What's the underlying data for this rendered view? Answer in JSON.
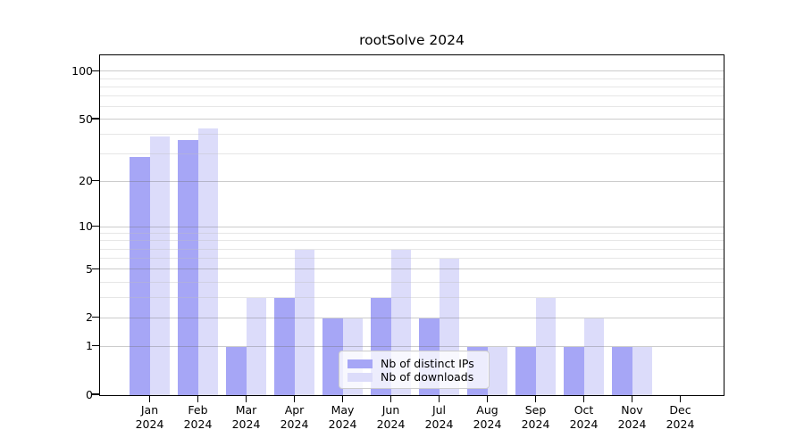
{
  "chart_data": {
    "type": "bar",
    "title": "rootSolve 2024",
    "categories": [
      "Jan",
      "Feb",
      "Mar",
      "Apr",
      "May",
      "Jun",
      "Jul",
      "Aug",
      "Sep",
      "Oct",
      "Nov",
      "Dec"
    ],
    "year": "2024",
    "series": [
      {
        "name": "Nb of distinct IPs",
        "color": "#a6a6f6",
        "values": [
          29,
          37,
          1,
          3,
          2,
          3,
          2,
          1,
          1,
          1,
          1,
          0
        ]
      },
      {
        "name": "Nb of downloads",
        "color": "#dcdcfa",
        "values": [
          39,
          44,
          3,
          7,
          2,
          7,
          6,
          1,
          3,
          2,
          1,
          0
        ]
      }
    ],
    "xlabel": "",
    "ylabel": "",
    "yscale": "log1p",
    "ylim": [
      0,
      125
    ],
    "ytick_labels": [
      100,
      50,
      20,
      10,
      5,
      2,
      1,
      0
    ],
    "y_major_gridlines": [
      1,
      2,
      5,
      10,
      20,
      50,
      100
    ],
    "y_minor_gridlines": [
      3,
      4,
      6,
      7,
      8,
      9,
      30,
      40,
      60,
      70,
      80,
      90
    ],
    "grid": "on",
    "legend_position": "lower center inside plot"
  }
}
